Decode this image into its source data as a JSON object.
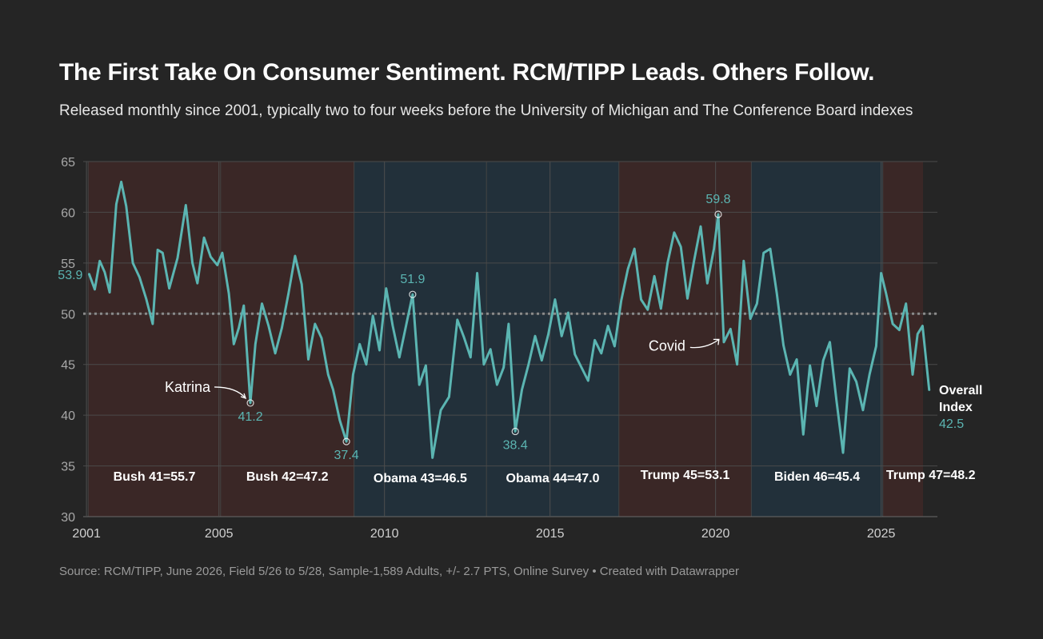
{
  "title": "The First Take On Consumer Sentiment. RCM/TIPP Leads. Others Follow.",
  "subtitle": "Released monthly since 2001, typically two to four weeks before the University of Michigan and The Conference Board indexes",
  "source": "Source: RCM/TIPP, June 2026, Field 5/26 to 5/28, Sample-1,589 Adults, +/- 2.7 PTS, Online Survey • Created with Datawrapper",
  "colors": {
    "background": "#252525",
    "line": "#5bb5b2",
    "republican_band": "#3a2726",
    "democrat_band": "#22303a",
    "reference_line": "#8a8a8a"
  },
  "chart_data": {
    "type": "line",
    "title": "The First Take On Consumer Sentiment. RCM/TIPP Leads. Others Follow.",
    "xlabel": "",
    "ylabel": "",
    "xlim": [
      2000.9,
      2026.7
    ],
    "ylim": [
      30,
      65
    ],
    "y_ticks": [
      30,
      35,
      40,
      45,
      50,
      55,
      60,
      65
    ],
    "x_ticks": [
      2001,
      2005,
      2010,
      2015,
      2020,
      2025
    ],
    "grid": true,
    "reference_value": 50,
    "series": [
      {
        "name": "Overall Index",
        "x": [
          2001.08,
          2001.25,
          2001.4,
          2001.55,
          2001.7,
          2001.9,
          2002.05,
          2002.2,
          2002.4,
          2002.6,
          2002.8,
          2003.0,
          2003.15,
          2003.3,
          2003.5,
          2003.75,
          2004.0,
          2004.2,
          2004.35,
          2004.55,
          2004.75,
          2004.95,
          2005.1,
          2005.3,
          2005.45,
          2005.6,
          2005.75,
          2005.95,
          2006.1,
          2006.3,
          2006.5,
          2006.7,
          2006.9,
          2007.1,
          2007.3,
          2007.5,
          2007.7,
          2007.9,
          2008.1,
          2008.3,
          2008.45,
          2008.65,
          2008.85,
          2009.05,
          2009.25,
          2009.45,
          2009.65,
          2009.85,
          2010.05,
          2010.25,
          2010.45,
          2010.65,
          2010.85,
          2011.05,
          2011.25,
          2011.45,
          2011.7,
          2011.95,
          2012.2,
          2012.4,
          2012.6,
          2012.8,
          2013.0,
          2013.2,
          2013.4,
          2013.6,
          2013.75,
          2013.95,
          2014.15,
          2014.35,
          2014.55,
          2014.75,
          2014.95,
          2015.15,
          2015.35,
          2015.55,
          2015.75,
          2015.95,
          2016.15,
          2016.35,
          2016.55,
          2016.75,
          2016.95,
          2017.15,
          2017.35,
          2017.55,
          2017.75,
          2017.95,
          2018.15,
          2018.35,
          2018.55,
          2018.75,
          2018.95,
          2019.15,
          2019.35,
          2019.55,
          2019.75,
          2019.95,
          2020.08,
          2020.25,
          2020.45,
          2020.65,
          2020.85,
          2021.05,
          2021.25,
          2021.45,
          2021.65,
          2021.85,
          2022.05,
          2022.25,
          2022.45,
          2022.65,
          2022.85,
          2023.05,
          2023.25,
          2023.45,
          2023.65,
          2023.85,
          2024.05,
          2024.25,
          2024.45,
          2024.65,
          2024.85,
          2025.0,
          2025.15,
          2025.35,
          2025.55,
          2025.75,
          2025.95,
          2026.1,
          2026.25,
          2026.45
        ],
        "values": [
          53.9,
          52.4,
          55.2,
          54.1,
          52.1,
          60.8,
          63.0,
          60.6,
          55.0,
          53.6,
          51.5,
          49.0,
          56.3,
          56.0,
          52.5,
          55.5,
          60.7,
          55.0,
          53.0,
          57.5,
          55.6,
          54.8,
          56.0,
          52.0,
          47.0,
          48.6,
          50.8,
          41.2,
          47.0,
          51.0,
          48.8,
          46.1,
          48.6,
          52.0,
          55.7,
          52.9,
          45.5,
          49.0,
          47.6,
          44.0,
          42.5,
          39.5,
          37.4,
          44.0,
          47.0,
          45.0,
          49.8,
          46.4,
          52.5,
          48.8,
          45.7,
          48.8,
          51.9,
          43.0,
          44.9,
          35.8,
          40.5,
          41.8,
          49.4,
          47.7,
          45.7,
          54.0,
          45.0,
          46.5,
          43.0,
          44.7,
          49.0,
          38.4,
          42.5,
          45.0,
          47.8,
          45.4,
          48.0,
          51.4,
          47.8,
          50.1,
          46.0,
          44.7,
          43.4,
          47.4,
          46.1,
          48.8,
          46.8,
          51.3,
          54.4,
          56.4,
          51.4,
          50.4,
          53.7,
          50.5,
          55.0,
          58.0,
          56.6,
          51.5,
          55.2,
          58.6,
          53.0,
          56.4,
          59.8,
          47.2,
          48.5,
          45.0,
          55.2,
          49.5,
          51.0,
          56.0,
          56.4,
          52.0,
          46.9,
          44.0,
          45.5,
          38.1,
          44.9,
          40.9,
          45.4,
          47.2,
          41.5,
          36.3,
          44.6,
          43.3,
          40.5,
          44.0,
          46.8,
          54.0,
          52.0,
          49.0,
          48.4,
          51.0,
          44.0,
          48.0,
          48.8,
          42.5
        ]
      }
    ],
    "presidencies": [
      {
        "label": "Bush 41=55.7",
        "start": 2001.05,
        "end": 2005.05,
        "party": "republican"
      },
      {
        "label": "Bush 42=47.2",
        "start": 2005.05,
        "end": 2009.08,
        "party": "republican"
      },
      {
        "label": "Obama 43=46.5",
        "start": 2009.08,
        "end": 2013.08,
        "party": "democrat"
      },
      {
        "label": "Obama 44=47.0",
        "start": 2013.08,
        "end": 2017.08,
        "party": "democrat"
      },
      {
        "label": "Trump 45=53.1",
        "start": 2017.08,
        "end": 2021.08,
        "party": "republican"
      },
      {
        "label": "Biden 46=45.4",
        "start": 2021.08,
        "end": 2025.05,
        "party": "democrat"
      },
      {
        "label": "Trump 47=48.2",
        "start": 2025.05,
        "end": 2026.5,
        "party": "republican"
      }
    ],
    "point_labels": [
      {
        "label": "53.9",
        "x": 2001.08,
        "y": 53.9
      },
      {
        "label": "41.2",
        "x": 2005.95,
        "y": 41.2
      },
      {
        "label": "37.4",
        "x": 2008.85,
        "y": 37.4
      },
      {
        "label": "51.9",
        "x": 2010.85,
        "y": 51.9
      },
      {
        "label": "38.4",
        "x": 2013.95,
        "y": 38.4
      },
      {
        "label": "59.8",
        "x": 2020.08,
        "y": 59.8
      }
    ],
    "annotations": [
      {
        "text": "Katrina",
        "x": 2005.95,
        "y": 41.2
      },
      {
        "text": "Covid",
        "x": 2020.15,
        "y": 47.0
      }
    ],
    "end_label": {
      "name": "Overall Index",
      "value": "42.5"
    }
  }
}
